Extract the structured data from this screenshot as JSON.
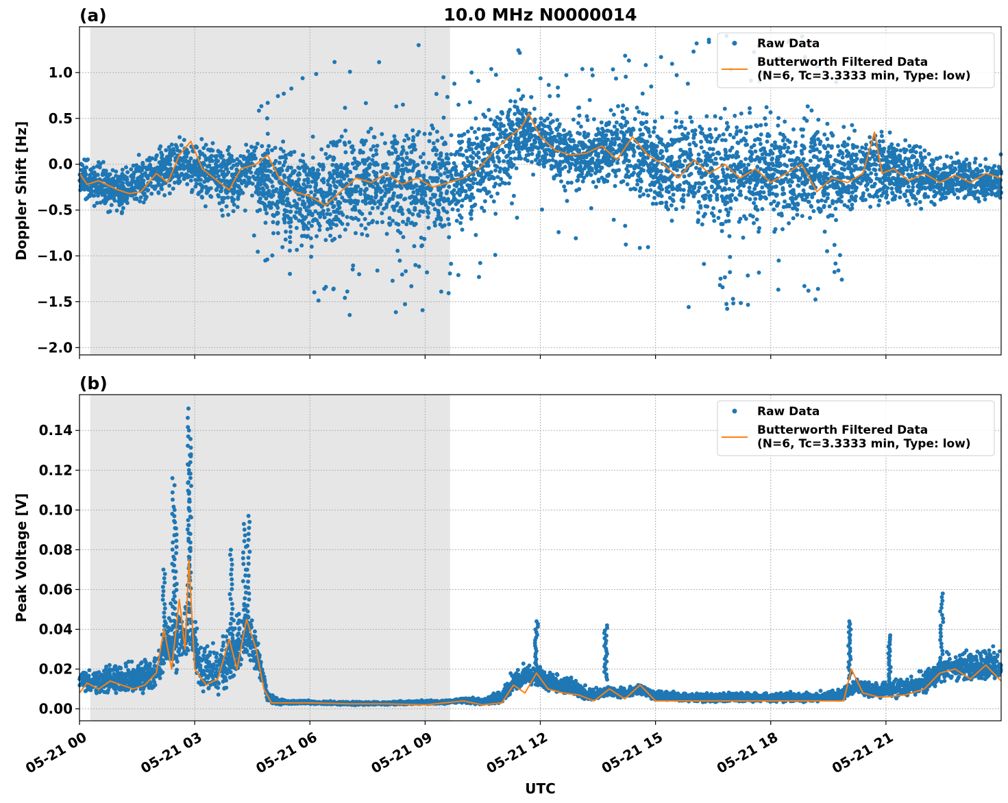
{
  "figure": {
    "title": "10.0 MHz N0000014",
    "xlabel": "UTC"
  },
  "colors": {
    "raw": "#1f77b4",
    "filtered": "#ff7f0e",
    "shade": "#e6e6e6"
  },
  "chart_data": [
    {
      "type": "scatter",
      "panel_label": "(a)",
      "title": "10.0 MHz N0000014",
      "ylabel": "Doppler Shift [Hz]",
      "xlabel": "",
      "xlim_hours": [
        0,
        24
      ],
      "ylim": [
        -2.08,
        1.5
      ],
      "yticks": [
        1.0,
        0.5,
        0.0,
        -0.5,
        -1.0,
        -1.5,
        -2.0
      ],
      "ytick_labels": [
        "1.0",
        "0.5",
        "0.0",
        "−0.5",
        "−1.0",
        "−1.5",
        "−2.0"
      ],
      "shaded_region_hours": [
        0.28,
        9.65
      ],
      "grid": true,
      "legend_position": "top-right",
      "series": [
        {
          "name": "Raw Data",
          "kind": "scatter",
          "center": [
            [
              0.0,
              -0.15
            ],
            [
              0.5,
              -0.22
            ],
            [
              1.0,
              -0.3
            ],
            [
              1.5,
              -0.2
            ],
            [
              2.0,
              -0.12
            ],
            [
              2.5,
              0.0
            ],
            [
              3.0,
              -0.05
            ],
            [
              3.5,
              -0.12
            ],
            [
              4.0,
              -0.2
            ],
            [
              4.5,
              0.0
            ],
            [
              5.0,
              -0.25
            ],
            [
              5.5,
              -0.35
            ],
            [
              6.0,
              -0.38
            ],
            [
              6.5,
              -0.32
            ],
            [
              7.0,
              -0.25
            ],
            [
              7.5,
              -0.2
            ],
            [
              8.0,
              -0.22
            ],
            [
              8.5,
              -0.2
            ],
            [
              9.0,
              -0.22
            ],
            [
              9.5,
              -0.2
            ],
            [
              10.0,
              -0.15
            ],
            [
              10.5,
              0.0
            ],
            [
              11.0,
              0.2
            ],
            [
              11.5,
              0.4
            ],
            [
              12.0,
              0.25
            ],
            [
              12.5,
              0.15
            ],
            [
              13.0,
              0.1
            ],
            [
              13.5,
              0.15
            ],
            [
              14.0,
              0.18
            ],
            [
              14.5,
              0.15
            ],
            [
              15.0,
              0.0
            ],
            [
              15.5,
              -0.05
            ],
            [
              16.0,
              0.0
            ],
            [
              16.5,
              -0.05
            ],
            [
              17.0,
              -0.1
            ],
            [
              17.5,
              -0.08
            ],
            [
              18.0,
              -0.1
            ],
            [
              18.5,
              -0.12
            ],
            [
              19.0,
              -0.08
            ],
            [
              19.5,
              -0.15
            ],
            [
              20.0,
              -0.1
            ],
            [
              20.5,
              -0.08
            ],
            [
              21.0,
              -0.05
            ],
            [
              21.5,
              -0.1
            ],
            [
              22.0,
              -0.15
            ],
            [
              22.5,
              -0.18
            ],
            [
              23.0,
              -0.15
            ],
            [
              23.5,
              -0.2
            ],
            [
              24.0,
              -0.15
            ]
          ],
          "spread": [
            [
              0.0,
              0.3
            ],
            [
              2.0,
              0.35
            ],
            [
              4.5,
              0.5
            ],
            [
              5.0,
              0.7
            ],
            [
              7.0,
              0.8
            ],
            [
              9.5,
              0.8
            ],
            [
              10.0,
              0.7
            ],
            [
              11.0,
              0.6
            ],
            [
              12.0,
              0.45
            ],
            [
              13.5,
              0.5
            ],
            [
              14.5,
              0.6
            ],
            [
              15.5,
              0.8
            ],
            [
              17.0,
              0.85
            ],
            [
              19.0,
              0.8
            ],
            [
              20.0,
              0.6
            ],
            [
              21.0,
              0.5
            ],
            [
              22.5,
              0.35
            ],
            [
              24.0,
              0.3
            ]
          ]
        },
        {
          "name": "Butterworth Filtered Data\n(N=6, Tc=3.3333 min, Type: low)",
          "kind": "line",
          "points": [
            [
              0.0,
              -0.1
            ],
            [
              0.2,
              -0.22
            ],
            [
              0.5,
              -0.18
            ],
            [
              1.0,
              -0.28
            ],
            [
              1.3,
              -0.32
            ],
            [
              1.6,
              -0.3
            ],
            [
              2.0,
              -0.1
            ],
            [
              2.3,
              -0.2
            ],
            [
              2.6,
              0.1
            ],
            [
              2.9,
              0.25
            ],
            [
              3.2,
              -0.05
            ],
            [
              3.5,
              -0.15
            ],
            [
              3.9,
              -0.28
            ],
            [
              4.2,
              -0.05
            ],
            [
              4.6,
              0.0
            ],
            [
              4.9,
              0.1
            ],
            [
              5.2,
              -0.15
            ],
            [
              5.6,
              -0.3
            ],
            [
              6.0,
              -0.35
            ],
            [
              6.4,
              -0.45
            ],
            [
              6.8,
              -0.3
            ],
            [
              7.2,
              -0.15
            ],
            [
              7.6,
              -0.2
            ],
            [
              8.0,
              -0.1
            ],
            [
              8.4,
              -0.22
            ],
            [
              8.8,
              -0.15
            ],
            [
              9.2,
              -0.25
            ],
            [
              9.6,
              -0.2
            ],
            [
              10.0,
              -0.15
            ],
            [
              10.4,
              -0.05
            ],
            [
              10.8,
              0.15
            ],
            [
              11.2,
              0.3
            ],
            [
              11.5,
              0.4
            ],
            [
              11.7,
              0.55
            ],
            [
              12.0,
              0.3
            ],
            [
              12.4,
              0.15
            ],
            [
              12.8,
              0.1
            ],
            [
              13.2,
              0.12
            ],
            [
              13.6,
              0.2
            ],
            [
              14.0,
              0.05
            ],
            [
              14.4,
              0.3
            ],
            [
              14.8,
              0.1
            ],
            [
              15.2,
              0.0
            ],
            [
              15.6,
              -0.15
            ],
            [
              16.0,
              0.05
            ],
            [
              16.4,
              -0.1
            ],
            [
              16.8,
              0.0
            ],
            [
              17.2,
              -0.15
            ],
            [
              17.6,
              -0.05
            ],
            [
              18.0,
              -0.2
            ],
            [
              18.4,
              -0.1
            ],
            [
              18.8,
              0.0
            ],
            [
              19.2,
              -0.3
            ],
            [
              19.6,
              -0.15
            ],
            [
              20.0,
              -0.2
            ],
            [
              20.4,
              -0.1
            ],
            [
              20.7,
              0.35
            ],
            [
              20.9,
              -0.1
            ],
            [
              21.2,
              -0.05
            ],
            [
              21.6,
              -0.18
            ],
            [
              22.0,
              -0.1
            ],
            [
              22.4,
              -0.2
            ],
            [
              22.8,
              -0.12
            ],
            [
              23.2,
              -0.2
            ],
            [
              23.6,
              -0.1
            ],
            [
              24.0,
              -0.15
            ]
          ]
        }
      ]
    },
    {
      "type": "scatter",
      "panel_label": "(b)",
      "title": "",
      "ylabel": "Peak Voltage [V]",
      "xlabel": "UTC",
      "xlim_hours": [
        0,
        24
      ],
      "ylim": [
        -0.006,
        0.158
      ],
      "yticks": [
        0.14,
        0.12,
        0.1,
        0.08,
        0.06,
        0.04,
        0.02,
        0.0
      ],
      "ytick_labels": [
        "0.14",
        "0.12",
        "0.10",
        "0.08",
        "0.06",
        "0.04",
        "0.02",
        "0.00"
      ],
      "xticks_hours": [
        0,
        3,
        6,
        9,
        12,
        15,
        18,
        21
      ],
      "xtick_labels": [
        "05-21 00",
        "05-21 03",
        "05-21 06",
        "05-21 09",
        "05-21 12",
        "05-21 15",
        "05-21 18",
        "05-21 21"
      ],
      "shaded_region_hours": [
        0.28,
        9.65
      ],
      "grid": true,
      "legend_position": "top-right",
      "series": [
        {
          "name": "Raw Data",
          "kind": "scatter",
          "center": [
            [
              0.0,
              0.012
            ],
            [
              0.5,
              0.012
            ],
            [
              1.0,
              0.013
            ],
            [
              1.5,
              0.013
            ],
            [
              2.0,
              0.016
            ],
            [
              2.3,
              0.03
            ],
            [
              2.6,
              0.03
            ],
            [
              2.9,
              0.035
            ],
            [
              3.2,
              0.015
            ],
            [
              3.6,
              0.015
            ],
            [
              4.0,
              0.025
            ],
            [
              4.4,
              0.035
            ],
            [
              4.7,
              0.02
            ],
            [
              4.9,
              0.005
            ],
            [
              5.2,
              0.003
            ],
            [
              6.0,
              0.003
            ],
            [
              7.0,
              0.0025
            ],
            [
              8.0,
              0.0025
            ],
            [
              9.0,
              0.003
            ],
            [
              9.5,
              0.003
            ],
            [
              10.0,
              0.004
            ],
            [
              10.5,
              0.003
            ],
            [
              11.0,
              0.005
            ],
            [
              11.3,
              0.012
            ],
            [
              11.8,
              0.015
            ],
            [
              12.2,
              0.012
            ],
            [
              12.8,
              0.01
            ],
            [
              13.2,
              0.006
            ],
            [
              13.8,
              0.008
            ],
            [
              14.2,
              0.007
            ],
            [
              14.6,
              0.009
            ],
            [
              15.0,
              0.006
            ],
            [
              16.0,
              0.005
            ],
            [
              17.0,
              0.005
            ],
            [
              18.0,
              0.005
            ],
            [
              19.0,
              0.005
            ],
            [
              19.8,
              0.006
            ],
            [
              20.2,
              0.01
            ],
            [
              20.6,
              0.008
            ],
            [
              21.2,
              0.008
            ],
            [
              21.8,
              0.01
            ],
            [
              22.3,
              0.015
            ],
            [
              22.7,
              0.02
            ],
            [
              23.2,
              0.018
            ],
            [
              23.7,
              0.02
            ],
            [
              24.0,
              0.018
            ]
          ],
          "spread": [
            [
              0.0,
              0.01
            ],
            [
              2.0,
              0.015
            ],
            [
              2.6,
              0.03
            ],
            [
              3.0,
              0.02
            ],
            [
              4.4,
              0.025
            ],
            [
              4.9,
              0.004
            ],
            [
              5.5,
              0.0015
            ],
            [
              9.5,
              0.0015
            ],
            [
              10.5,
              0.003
            ],
            [
              11.5,
              0.01
            ],
            [
              12.5,
              0.008
            ],
            [
              13.5,
              0.005
            ],
            [
              15.0,
              0.004
            ],
            [
              19.5,
              0.004
            ],
            [
              20.5,
              0.007
            ],
            [
              22.0,
              0.01
            ],
            [
              23.0,
              0.014
            ],
            [
              24.0,
              0.014
            ]
          ]
        },
        {
          "name": "Butterworth Filtered Data\n(N=6, Tc=3.3333 min, Type: low)",
          "kind": "line",
          "points": [
            [
              0.0,
              0.008
            ],
            [
              0.2,
              0.013
            ],
            [
              0.5,
              0.01
            ],
            [
              0.8,
              0.014
            ],
            [
              1.1,
              0.012
            ],
            [
              1.4,
              0.01
            ],
            [
              1.7,
              0.012
            ],
            [
              2.0,
              0.018
            ],
            [
              2.2,
              0.04
            ],
            [
              2.4,
              0.02
            ],
            [
              2.6,
              0.055
            ],
            [
              2.75,
              0.03
            ],
            [
              2.85,
              0.075
            ],
            [
              3.0,
              0.02
            ],
            [
              3.3,
              0.012
            ],
            [
              3.6,
              0.015
            ],
            [
              3.9,
              0.035
            ],
            [
              4.1,
              0.02
            ],
            [
              4.35,
              0.045
            ],
            [
              4.6,
              0.03
            ],
            [
              4.8,
              0.01
            ],
            [
              5.0,
              0.003
            ],
            [
              6.0,
              0.003
            ],
            [
              7.0,
              0.0025
            ],
            [
              8.0,
              0.0025
            ],
            [
              9.0,
              0.002
            ],
            [
              9.5,
              0.003
            ],
            [
              10.0,
              0.004
            ],
            [
              10.5,
              0.002
            ],
            [
              11.0,
              0.003
            ],
            [
              11.3,
              0.012
            ],
            [
              11.6,
              0.008
            ],
            [
              11.9,
              0.018
            ],
            [
              12.2,
              0.01
            ],
            [
              12.6,
              0.008
            ],
            [
              13.0,
              0.007
            ],
            [
              13.4,
              0.004
            ],
            [
              13.8,
              0.01
            ],
            [
              14.2,
              0.005
            ],
            [
              14.6,
              0.012
            ],
            [
              15.0,
              0.004
            ],
            [
              16.0,
              0.004
            ],
            [
              17.0,
              0.004
            ],
            [
              18.0,
              0.004
            ],
            [
              19.0,
              0.004
            ],
            [
              19.9,
              0.004
            ],
            [
              20.1,
              0.02
            ],
            [
              20.4,
              0.008
            ],
            [
              20.8,
              0.006
            ],
            [
              21.0,
              0.006
            ],
            [
              21.5,
              0.007
            ],
            [
              22.0,
              0.01
            ],
            [
              22.4,
              0.018
            ],
            [
              22.8,
              0.02
            ],
            [
              23.2,
              0.015
            ],
            [
              23.6,
              0.022
            ],
            [
              24.0,
              0.014
            ]
          ]
        }
      ]
    }
  ]
}
